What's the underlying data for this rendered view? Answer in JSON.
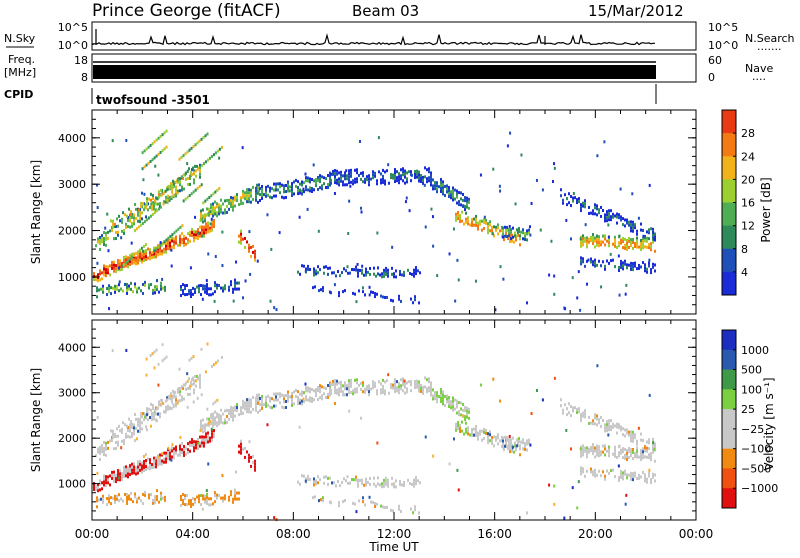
{
  "header": {
    "station": "Prince George (fitACF)",
    "beam": "Beam 03",
    "date": "15/Mar/2012"
  },
  "noise_panel": {
    "left_label": "N.Sky",
    "right_label": "N.Search",
    "right_label_dots": ".......",
    "left_ticks": [
      "10^5",
      "10^0"
    ],
    "right_ticks": [
      "10^5",
      "10^0"
    ]
  },
  "freq_panel": {
    "left_label_1": "Freq.",
    "left_label_2": "[MHz]",
    "left_ticks": [
      "18",
      "8"
    ],
    "right_label": "Nave",
    "right_label_dots": "....",
    "right_ticks": [
      "60",
      "0"
    ]
  },
  "cpid_panel": {
    "label": "CPID",
    "value": "twofsound -3501"
  },
  "colors": {
    "power_scale": [
      "#1a2cd8",
      "#1f4fb8",
      "#2f8a5a",
      "#4fae54",
      "#9ccf30",
      "#f2b21a",
      "#f47a14",
      "#e83a14",
      "#d40000"
    ],
    "velocity_scale": [
      "#e01010",
      "#f05010",
      "#f08a10",
      "#f8b030",
      "#c8c8c8",
      "#c8c8c8",
      "#7ad040",
      "#3e9a48",
      "#2a5ab0",
      "#1c2ec0"
    ]
  },
  "chart_data": [
    {
      "type": "heatmap",
      "name": "power",
      "xlabel": "",
      "ylabel": "Slant Range [km]",
      "xlim_hours": [
        0,
        24
      ],
      "ylim_km": [
        200,
        4600
      ],
      "y_ticks": [
        "1000",
        "2000",
        "3000",
        "4000"
      ],
      "colorbar": {
        "label": "Power [dB]",
        "ticks": [
          "4",
          "8",
          "12",
          "16",
          "20",
          "24",
          "28"
        ],
        "range": [
          0,
          32
        ]
      }
    },
    {
      "type": "heatmap",
      "name": "velocity",
      "xlabel": "Time UT",
      "ylabel": "Slant Range [km]",
      "xlim_hours": [
        0,
        24
      ],
      "ylim_km": [
        200,
        4600
      ],
      "y_ticks": [
        "1000",
        "2000",
        "3000",
        "4000"
      ],
      "x_ticks": [
        "00:00",
        "04:00",
        "08:00",
        "12:00",
        "16:00",
        "20:00",
        "00:00"
      ],
      "colorbar": {
        "label": "Velocity [m s⁻¹]",
        "ticks": [
          "1000",
          "500",
          "100",
          "25",
          "−25",
          "−100",
          "−500",
          "−1000"
        ]
      }
    }
  ]
}
